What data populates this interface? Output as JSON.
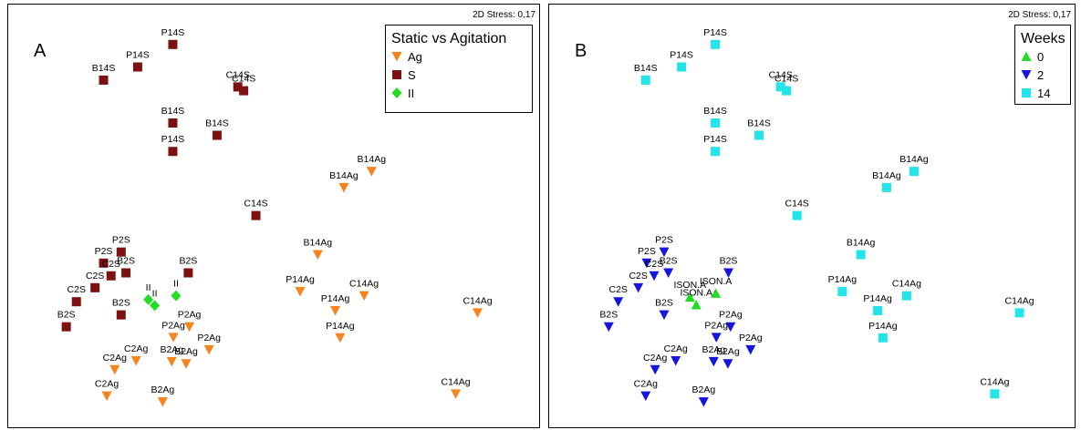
{
  "chart_data": [
    {
      "type": "scatter",
      "panel_letter": "A",
      "stress_label": "2D Stress: 0,17",
      "legend": {
        "title": "Static vs Agitation",
        "placement": "top-right",
        "entries": [
          {
            "name": "Ag",
            "symbol": "triangle-down",
            "color": "#F5841F"
          },
          {
            "name": "S",
            "symbol": "square",
            "color": "#7B1111"
          },
          {
            "name": "II",
            "symbol": "diamond",
            "color": "#22DD22"
          }
        ]
      },
      "xlim": [
        0,
        100
      ],
      "ylim": [
        0,
        100
      ],
      "axes_visible": false,
      "points": [
        {
          "label": "P14S",
          "group": "S",
          "x": 30.9,
          "y": 90.6
        },
        {
          "label": "P14S",
          "group": "S",
          "x": 24.3,
          "y": 85.3
        },
        {
          "label": "B14S",
          "group": "S",
          "x": 17.9,
          "y": 82.2
        },
        {
          "label": "C14S",
          "group": "S",
          "x": 43.1,
          "y": 80.6
        },
        {
          "label": "C14S",
          "group": "S",
          "x": 44.2,
          "y": 79.7
        },
        {
          "label": "B14S",
          "group": "S",
          "x": 30.9,
          "y": 72.1
        },
        {
          "label": "B14S",
          "group": "S",
          "x": 39.2,
          "y": 69.2
        },
        {
          "label": "P14S",
          "group": "S",
          "x": 30.9,
          "y": 65.4
        },
        {
          "label": "C14S",
          "group": "S",
          "x": 46.5,
          "y": 50.3
        },
        {
          "label": "P2S",
          "group": "S",
          "x": 21.2,
          "y": 41.7
        },
        {
          "label": "P2S",
          "group": "S",
          "x": 17.9,
          "y": 39.1
        },
        {
          "label": "B2S",
          "group": "S",
          "x": 22.1,
          "y": 36.8
        },
        {
          "label": "C2S",
          "group": "S",
          "x": 19.3,
          "y": 36.1
        },
        {
          "label": "B2S",
          "group": "S",
          "x": 33.8,
          "y": 36.8
        },
        {
          "label": "C2S",
          "group": "S",
          "x": 16.3,
          "y": 33.3
        },
        {
          "label": "C2S",
          "group": "S",
          "x": 12.8,
          "y": 30.0
        },
        {
          "label": "B2S",
          "group": "S",
          "x": 21.2,
          "y": 26.9
        },
        {
          "label": "B2S",
          "group": "S",
          "x": 10.9,
          "y": 24.1
        },
        {
          "label": "II",
          "group": "II",
          "x": 31.5,
          "y": 31.4
        },
        {
          "label": "II",
          "group": "II",
          "x": 26.3,
          "y": 30.5
        },
        {
          "label": "II",
          "group": "II",
          "x": 27.5,
          "y": 29.1
        },
        {
          "label": "B14Ag",
          "group": "Ag",
          "x": 68.2,
          "y": 60.7
        },
        {
          "label": "B14Ag",
          "group": "Ag",
          "x": 63.0,
          "y": 56.9
        },
        {
          "label": "B14Ag",
          "group": "Ag",
          "x": 58.1,
          "y": 41.1
        },
        {
          "label": "P14Ag",
          "group": "Ag",
          "x": 54.8,
          "y": 32.4
        },
        {
          "label": "C14Ag",
          "group": "Ag",
          "x": 66.8,
          "y": 31.4
        },
        {
          "label": "C14Ag",
          "group": "Ag",
          "x": 88.1,
          "y": 27.4
        },
        {
          "label": "P14Ag",
          "group": "Ag",
          "x": 61.4,
          "y": 27.9
        },
        {
          "label": "P14Ag",
          "group": "Ag",
          "x": 62.3,
          "y": 21.5
        },
        {
          "label": "C14Ag",
          "group": "Ag",
          "x": 84.0,
          "y": 8.3
        },
        {
          "label": "P2Ag",
          "group": "Ag",
          "x": 34.0,
          "y": 24.1
        },
        {
          "label": "P2Ag",
          "group": "Ag",
          "x": 31.0,
          "y": 21.6
        },
        {
          "label": "P2Ag",
          "group": "Ag",
          "x": 37.7,
          "y": 18.7
        },
        {
          "label": "B2Ag",
          "group": "Ag",
          "x": 30.7,
          "y": 15.9
        },
        {
          "label": "B2Ag",
          "group": "Ag",
          "x": 33.4,
          "y": 15.4
        },
        {
          "label": "C2Ag",
          "group": "Ag",
          "x": 24.0,
          "y": 16.1
        },
        {
          "label": "C2Ag",
          "group": "Ag",
          "x": 20.0,
          "y": 14.0
        },
        {
          "label": "C2Ag",
          "group": "Ag",
          "x": 18.5,
          "y": 7.8
        },
        {
          "label": "B2Ag",
          "group": "Ag",
          "x": 29.0,
          "y": 6.4
        }
      ]
    },
    {
      "type": "scatter",
      "panel_letter": "B",
      "stress_label": "2D Stress: 0,17",
      "legend": {
        "title": "Weeks",
        "placement": "top-right",
        "entries": [
          {
            "name": "0",
            "symbol": "triangle-up",
            "color": "#22DD22"
          },
          {
            "name": "2",
            "symbol": "triangle-down",
            "color": "#1515DD"
          },
          {
            "name": "14",
            "symbol": "square",
            "color": "#22E5EC"
          }
        ]
      },
      "xlim": [
        0,
        100
      ],
      "ylim": [
        0,
        100
      ],
      "axes_visible": false,
      "points": [
        {
          "label": "P14S",
          "group": "14",
          "x": 31.5,
          "y": 90.6
        },
        {
          "label": "P14S",
          "group": "14",
          "x": 25.1,
          "y": 85.3
        },
        {
          "label": "B14S",
          "group": "14",
          "x": 18.3,
          "y": 82.2
        },
        {
          "label": "C14S",
          "group": "14",
          "x": 43.9,
          "y": 80.6
        },
        {
          "label": "C14S",
          "group": "14",
          "x": 45.0,
          "y": 79.7
        },
        {
          "label": "B14S",
          "group": "14",
          "x": 31.5,
          "y": 72.1
        },
        {
          "label": "B14S",
          "group": "14",
          "x": 39.8,
          "y": 69.2
        },
        {
          "label": "P14S",
          "group": "14",
          "x": 31.5,
          "y": 65.4
        },
        {
          "label": "C14S",
          "group": "14",
          "x": 47.0,
          "y": 50.3
        },
        {
          "label": "B14Ag",
          "group": "14",
          "x": 69.2,
          "y": 60.7
        },
        {
          "label": "B14Ag",
          "group": "14",
          "x": 64.0,
          "y": 56.9
        },
        {
          "label": "B14Ag",
          "group": "14",
          "x": 59.1,
          "y": 41.1
        },
        {
          "label": "P14Ag",
          "group": "14",
          "x": 55.6,
          "y": 32.4
        },
        {
          "label": "C14Ag",
          "group": "14",
          "x": 67.8,
          "y": 31.4
        },
        {
          "label": "C14Ag",
          "group": "14",
          "x": 89.2,
          "y": 27.4
        },
        {
          "label": "P14Ag",
          "group": "14",
          "x": 62.3,
          "y": 27.9
        },
        {
          "label": "P14Ag",
          "group": "14",
          "x": 63.3,
          "y": 21.5
        },
        {
          "label": "C14Ag",
          "group": "14",
          "x": 84.5,
          "y": 8.3
        },
        {
          "label": "ISON.A",
          "group": "0",
          "x": 31.6,
          "y": 32.0
        },
        {
          "label": "ISON.A",
          "group": "0",
          "x": 26.7,
          "y": 31.1
        },
        {
          "label": "ISON.A",
          "group": "0",
          "x": 27.9,
          "y": 29.3
        },
        {
          "label": "P2S",
          "group": "2",
          "x": 21.8,
          "y": 41.7
        },
        {
          "label": "P2S",
          "group": "2",
          "x": 18.5,
          "y": 39.1
        },
        {
          "label": "B2S",
          "group": "2",
          "x": 22.6,
          "y": 36.8
        },
        {
          "label": "C2S",
          "group": "2",
          "x": 19.9,
          "y": 36.1
        },
        {
          "label": "B2S",
          "group": "2",
          "x": 34.0,
          "y": 36.8
        },
        {
          "label": "C2S",
          "group": "2",
          "x": 16.9,
          "y": 33.3
        },
        {
          "label": "C2S",
          "group": "2",
          "x": 13.1,
          "y": 30.0
        },
        {
          "label": "B2S",
          "group": "2",
          "x": 21.8,
          "y": 26.9
        },
        {
          "label": "B2S",
          "group": "2",
          "x": 11.3,
          "y": 24.1
        },
        {
          "label": "P2Ag",
          "group": "2",
          "x": 34.4,
          "y": 24.1
        },
        {
          "label": "P2Ag",
          "group": "2",
          "x": 31.7,
          "y": 21.6
        },
        {
          "label": "P2Ag",
          "group": "2",
          "x": 38.2,
          "y": 18.7
        },
        {
          "label": "B2Ag",
          "group": "2",
          "x": 31.2,
          "y": 15.9
        },
        {
          "label": "B2Ag",
          "group": "2",
          "x": 33.9,
          "y": 15.4
        },
        {
          "label": "C2Ag",
          "group": "2",
          "x": 24.0,
          "y": 16.1
        },
        {
          "label": "C2Ag",
          "group": "2",
          "x": 20.1,
          "y": 14.0
        },
        {
          "label": "C2Ag",
          "group": "2",
          "x": 18.3,
          "y": 7.8
        },
        {
          "label": "B2Ag",
          "group": "2",
          "x": 29.3,
          "y": 6.4
        }
      ]
    }
  ]
}
